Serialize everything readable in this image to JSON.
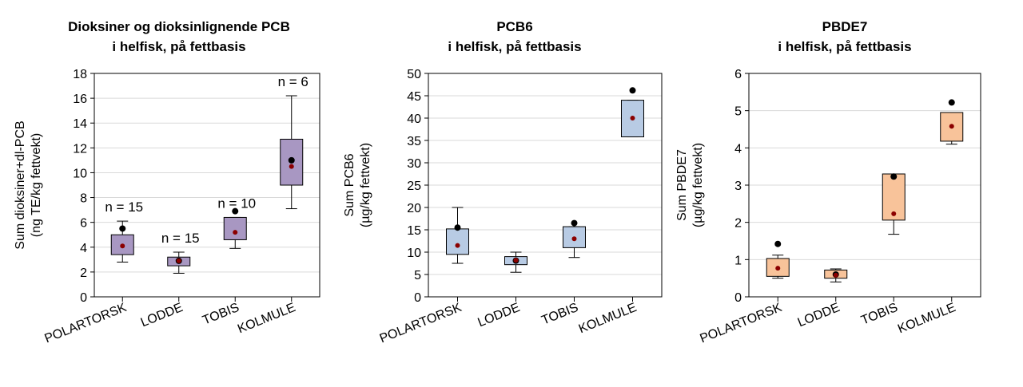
{
  "colors": {
    "panel1_box": "#a897c2",
    "panel2_box": "#b8cbe4",
    "panel3_box": "#f8c39a",
    "black_dot": "#000000",
    "red_dot": "#8b0000",
    "grid": "#d9d9d9"
  },
  "chart_data": [
    {
      "type": "box",
      "title_line1": "Dioksiner og dioksinlignende PCB",
      "title_line2": "i helfisk, på fettbasis",
      "ylabel_line1": "Sum dioksiner+dl-PCB",
      "ylabel_line2": "(ng TE/kg fettvekt)",
      "ylim": [
        0,
        18
      ],
      "yticks": [
        "0",
        "2",
        "4",
        "6",
        "8",
        "10",
        "12",
        "14",
        "16",
        "18"
      ],
      "categories": [
        "POLARTORSK",
        "LODDE",
        "TOBIS",
        "KOLMULE"
      ],
      "boxes": [
        {
          "whisker_low": 2.8,
          "q1": 3.4,
          "q3": 5.0,
          "whisker_high": 6.1,
          "black": 5.5,
          "red": 4.1,
          "n": "n = 15"
        },
        {
          "whisker_low": 1.9,
          "q1": 2.5,
          "q3": 3.2,
          "whisker_high": 3.6,
          "black": 2.9,
          "red": 2.9,
          "n": "n = 15"
        },
        {
          "whisker_low": 3.9,
          "q1": 4.6,
          "q3": 6.4,
          "whisker_high": 6.4,
          "black": 6.9,
          "red": 5.2,
          "n": "n = 10"
        },
        {
          "whisker_low": 7.1,
          "q1": 9.0,
          "q3": 12.7,
          "whisker_high": 16.2,
          "black": 11.0,
          "red": 10.5,
          "n": "n = 6"
        }
      ]
    },
    {
      "type": "box",
      "title_line1": "PCB6",
      "title_line2": "i helfisk, på fettbasis",
      "ylabel_line1": "Sum PCB6",
      "ylabel_line2": "(µg/kg fettvekt)",
      "ylim": [
        0,
        50
      ],
      "yticks": [
        "0",
        "5",
        "10",
        "15",
        "20",
        "25",
        "30",
        "35",
        "40",
        "45",
        "50"
      ],
      "categories": [
        "POLARTORSK",
        "LODDE",
        "TOBIS",
        "KOLMULE"
      ],
      "boxes": [
        {
          "whisker_low": 7.5,
          "q1": 9.5,
          "q3": 15.2,
          "whisker_high": 20.0,
          "black": 15.5,
          "red": 11.5,
          "n": ""
        },
        {
          "whisker_low": 5.5,
          "q1": 7.2,
          "q3": 9.0,
          "whisker_high": 10.0,
          "black": 8.1,
          "red": 8.2,
          "n": ""
        },
        {
          "whisker_low": 8.8,
          "q1": 11.0,
          "q3": 15.7,
          "whisker_high": 15.7,
          "black": 16.5,
          "red": 13.0,
          "n": ""
        },
        {
          "whisker_low": 35.8,
          "q1": 35.8,
          "q3": 44.0,
          "whisker_high": 44.0,
          "black": 46.2,
          "red": 40.0,
          "n": ""
        }
      ]
    },
    {
      "type": "box",
      "title_line1": "PBDE7",
      "title_line2": "i helfisk, på fettbasis",
      "ylabel_line1": "Sum PBDE7",
      "ylabel_line2": "(µg/kg fettvekt)",
      "ylim": [
        0,
        6
      ],
      "yticks": [
        "0",
        "1",
        "2",
        "3",
        "4",
        "5",
        "6"
      ],
      "categories": [
        "POLARTORSK",
        "LODDE",
        "TOBIS",
        "KOLMULE"
      ],
      "boxes": [
        {
          "whisker_low": 0.5,
          "q1": 0.55,
          "q3": 1.03,
          "whisker_high": 1.12,
          "black": 1.42,
          "red": 0.77,
          "n": ""
        },
        {
          "whisker_low": 0.4,
          "q1": 0.5,
          "q3": 0.72,
          "whisker_high": 0.75,
          "black": 0.6,
          "red": 0.58,
          "n": ""
        },
        {
          "whisker_low": 1.68,
          "q1": 2.06,
          "q3": 3.3,
          "whisker_high": 3.3,
          "black": 3.23,
          "red": 2.23,
          "n": ""
        },
        {
          "whisker_low": 4.1,
          "q1": 4.18,
          "q3": 4.95,
          "whisker_high": 4.95,
          "black": 5.22,
          "red": 4.58,
          "n": ""
        }
      ]
    }
  ]
}
